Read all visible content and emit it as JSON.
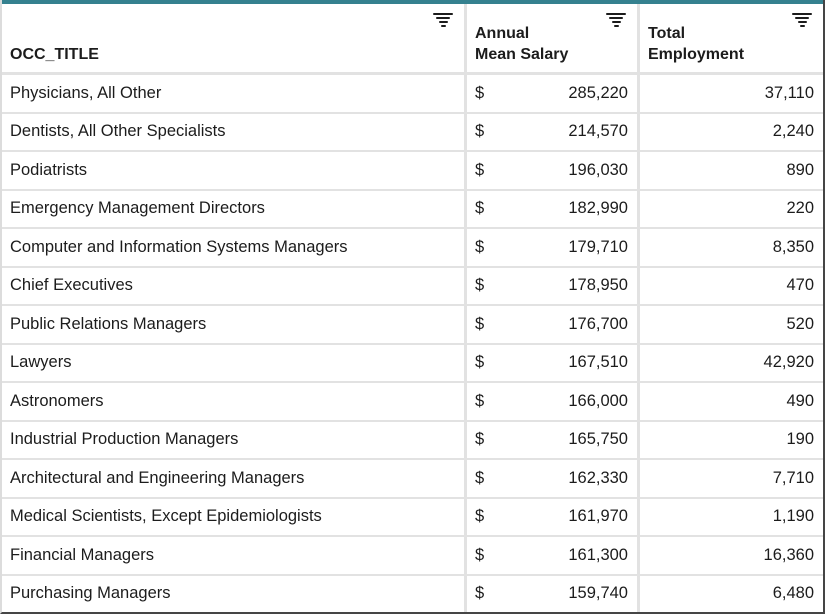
{
  "table": {
    "columns": [
      {
        "id": "occ_title",
        "label": "OCC_TITLE",
        "label2": ""
      },
      {
        "id": "annual_mean_salary",
        "label": "Annual",
        "label2": "Mean Salary"
      },
      {
        "id": "total_employment",
        "label": "Total",
        "label2": "Employment"
      }
    ],
    "rows": [
      {
        "occ_title": "Physicians, All Other",
        "currency": "$",
        "annual_mean_salary": "285,220",
        "total_employment": "37,110"
      },
      {
        "occ_title": "Dentists, All Other Specialists",
        "currency": "$",
        "annual_mean_salary": "214,570",
        "total_employment": "2,240"
      },
      {
        "occ_title": "Podiatrists",
        "currency": "$",
        "annual_mean_salary": "196,030",
        "total_employment": "890"
      },
      {
        "occ_title": "Emergency Management Directors",
        "currency": "$",
        "annual_mean_salary": "182,990",
        "total_employment": "220"
      },
      {
        "occ_title": "Computer and Information Systems Managers",
        "currency": "$",
        "annual_mean_salary": "179,710",
        "total_employment": "8,350"
      },
      {
        "occ_title": "Chief Executives",
        "currency": "$",
        "annual_mean_salary": "178,950",
        "total_employment": "470"
      },
      {
        "occ_title": "Public Relations Managers",
        "currency": "$",
        "annual_mean_salary": "176,700",
        "total_employment": "520"
      },
      {
        "occ_title": "Lawyers",
        "currency": "$",
        "annual_mean_salary": "167,510",
        "total_employment": "42,920"
      },
      {
        "occ_title": "Astronomers",
        "currency": "$",
        "annual_mean_salary": "166,000",
        "total_employment": "490"
      },
      {
        "occ_title": "Industrial Production Managers",
        "currency": "$",
        "annual_mean_salary": "165,750",
        "total_employment": "190"
      },
      {
        "occ_title": "Architectural and Engineering Managers",
        "currency": "$",
        "annual_mean_salary": "162,330",
        "total_employment": "7,710"
      },
      {
        "occ_title": "Medical Scientists, Except Epidemiologists",
        "currency": "$",
        "annual_mean_salary": "161,970",
        "total_employment": "1,190"
      },
      {
        "occ_title": "Financial Managers",
        "currency": "$",
        "annual_mean_salary": "161,300",
        "total_employment": "16,360"
      },
      {
        "occ_title": "Purchasing Managers",
        "currency": "$",
        "annual_mean_salary": "159,740",
        "total_employment": "6,480"
      }
    ]
  },
  "icons": {
    "header_filter": "filter-list-icon"
  },
  "colors": {
    "accent_teal": "#35818f",
    "divider_gray": "#e2e2e2",
    "text": "#1c1c1c",
    "outer_dark_border": "#454545"
  }
}
